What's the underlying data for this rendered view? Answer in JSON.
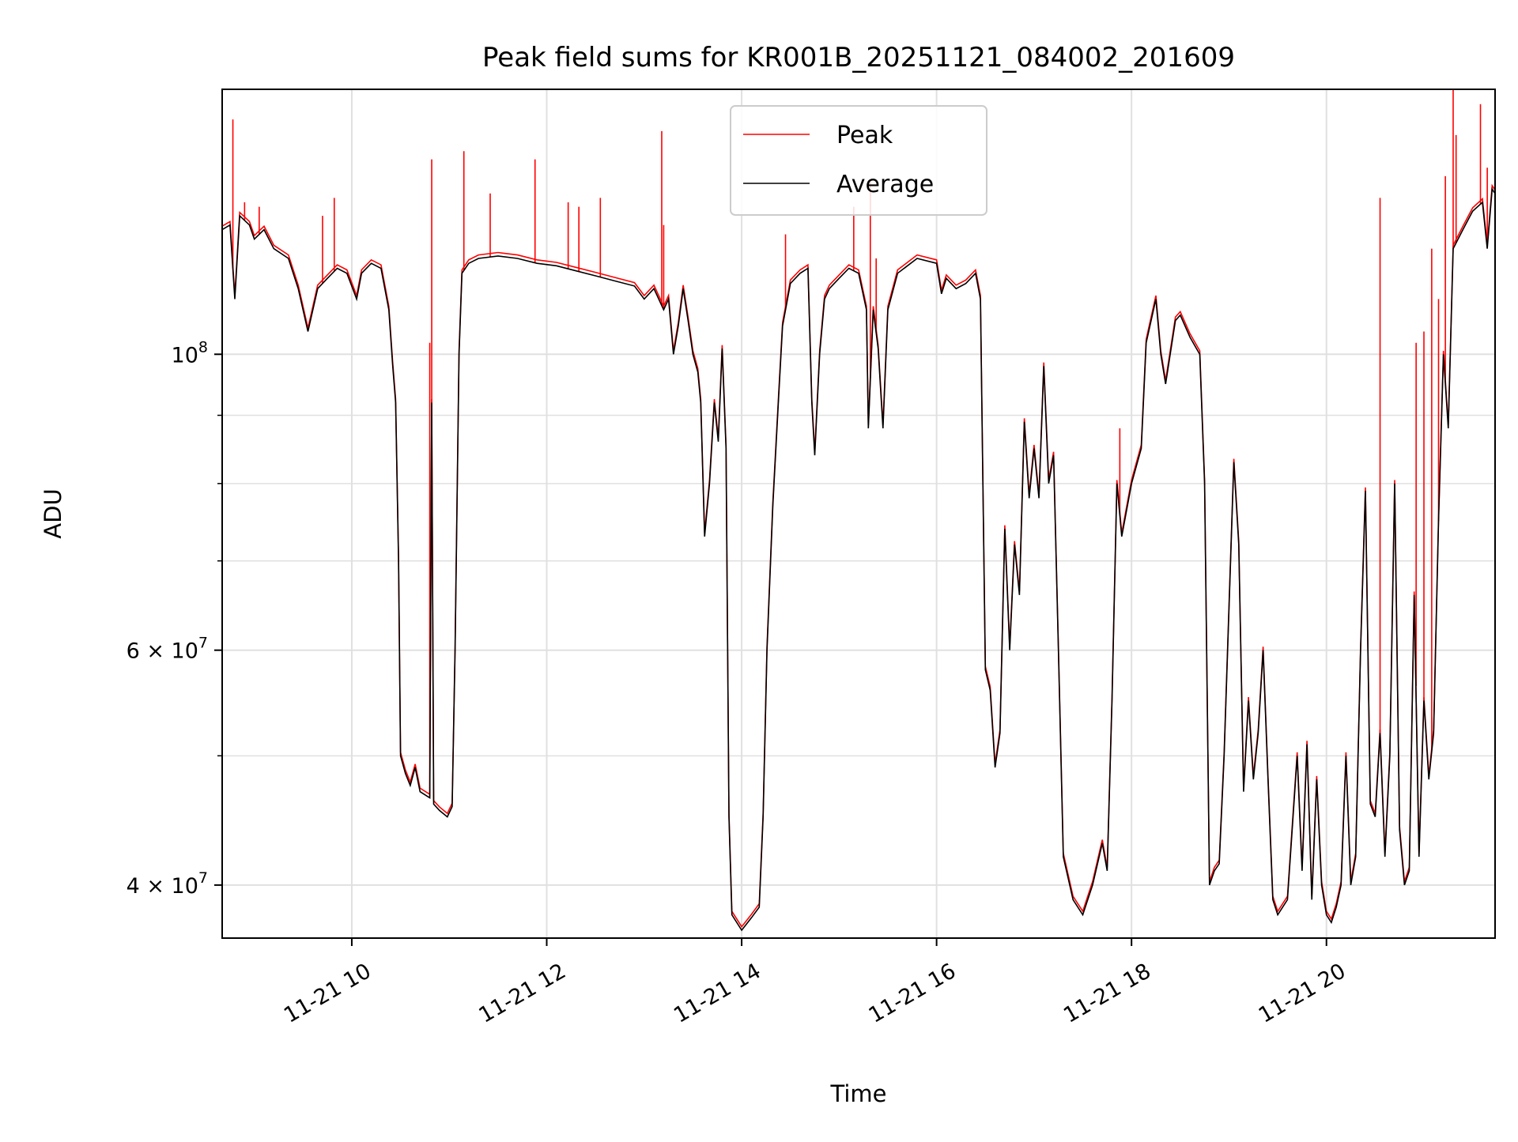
{
  "chart_data": {
    "type": "line",
    "title": "Peak field sums for KR001B_20251121_084002_201609",
    "xlabel": "Time",
    "ylabel": "ADU",
    "yscale": "log",
    "xlim_hours": [
      8.67,
      21.73
    ],
    "ylim": [
      36500000,
      158000000
    ],
    "grid": true,
    "legend_position": "upper-center",
    "colors": {
      "Peak": "#ff0000",
      "Average": "#000000",
      "grid": "#e0e0e0",
      "legend_border": "#cccccc"
    },
    "x_ticks": [
      {
        "hour": 10,
        "label": "11-21 10"
      },
      {
        "hour": 12,
        "label": "11-21 12"
      },
      {
        "hour": 14,
        "label": "11-21 14"
      },
      {
        "hour": 16,
        "label": "11-21 16"
      },
      {
        "hour": 18,
        "label": "11-21 18"
      },
      {
        "hour": 20,
        "label": "11-21 20"
      }
    ],
    "y_major_ticks": [
      {
        "value": 40000000,
        "mantissa": "4 × 10",
        "exp": "7"
      },
      {
        "value": 60000000,
        "mantissa": "6 × 10",
        "exp": "7"
      },
      {
        "value": 100000000,
        "mantissa": "10",
        "exp": "8"
      }
    ],
    "y_minor_ticks": [
      50000000,
      70000000,
      80000000,
      90000000
    ],
    "series": [
      {
        "name": "Average",
        "points": [
          [
            8.67,
            124000000
          ],
          [
            8.75,
            125000000
          ],
          [
            8.8,
            110000000
          ],
          [
            8.85,
            127000000
          ],
          [
            8.95,
            125000000
          ],
          [
            9.0,
            122000000
          ],
          [
            9.1,
            124000000
          ],
          [
            9.2,
            120000000
          ],
          [
            9.35,
            118000000
          ],
          [
            9.45,
            112000000
          ],
          [
            9.55,
            104000000
          ],
          [
            9.65,
            112000000
          ],
          [
            9.75,
            114000000
          ],
          [
            9.85,
            116000000
          ],
          [
            9.95,
            115000000
          ],
          [
            10.05,
            110000000
          ],
          [
            10.1,
            115000000
          ],
          [
            10.2,
            117000000
          ],
          [
            10.3,
            116000000
          ],
          [
            10.38,
            108000000
          ],
          [
            10.42,
            98000000
          ],
          [
            10.45,
            92000000
          ],
          [
            10.48,
            70000000
          ],
          [
            10.5,
            50000000
          ],
          [
            10.55,
            48500000
          ],
          [
            10.6,
            47500000
          ],
          [
            10.65,
            49000000
          ],
          [
            10.7,
            47000000
          ],
          [
            10.8,
            46500000
          ],
          [
            10.82,
            92000000
          ],
          [
            10.84,
            46000000
          ],
          [
            10.9,
            45500000
          ],
          [
            10.98,
            45000000
          ],
          [
            11.03,
            45800000
          ],
          [
            11.06,
            60000000
          ],
          [
            11.1,
            100000000
          ],
          [
            11.13,
            115000000
          ],
          [
            11.2,
            117000000
          ],
          [
            11.3,
            118000000
          ],
          [
            11.5,
            118500000
          ],
          [
            11.7,
            118000000
          ],
          [
            11.9,
            117000000
          ],
          [
            12.1,
            116500000
          ],
          [
            12.3,
            115500000
          ],
          [
            12.5,
            114500000
          ],
          [
            12.7,
            113500000
          ],
          [
            12.9,
            112500000
          ],
          [
            13.0,
            110000000
          ],
          [
            13.1,
            112000000
          ],
          [
            13.2,
            108000000
          ],
          [
            13.25,
            110000000
          ],
          [
            13.3,
            100000000
          ],
          [
            13.35,
            105000000
          ],
          [
            13.4,
            112000000
          ],
          [
            13.45,
            106000000
          ],
          [
            13.5,
            100000000
          ],
          [
            13.55,
            97000000
          ],
          [
            13.58,
            92000000
          ],
          [
            13.62,
            73000000
          ],
          [
            13.67,
            80000000
          ],
          [
            13.72,
            92000000
          ],
          [
            13.76,
            86000000
          ],
          [
            13.8,
            101000000
          ],
          [
            13.84,
            85000000
          ],
          [
            13.87,
            45000000
          ],
          [
            13.9,
            38000000
          ],
          [
            14.0,
            37000000
          ],
          [
            14.1,
            37800000
          ],
          [
            14.18,
            38500000
          ],
          [
            14.22,
            45000000
          ],
          [
            14.26,
            60000000
          ],
          [
            14.32,
            77000000
          ],
          [
            14.38,
            93000000
          ],
          [
            14.42,
            105000000
          ],
          [
            14.5,
            113000000
          ],
          [
            14.6,
            115000000
          ],
          [
            14.68,
            116000000
          ],
          [
            14.72,
            92000000
          ],
          [
            14.75,
            84000000
          ],
          [
            14.8,
            100000000
          ],
          [
            14.85,
            110000000
          ],
          [
            14.9,
            112000000
          ],
          [
            15.0,
            114000000
          ],
          [
            15.1,
            116000000
          ],
          [
            15.2,
            115000000
          ],
          [
            15.28,
            108000000
          ],
          [
            15.3,
            88000000
          ],
          [
            15.35,
            108000000
          ],
          [
            15.4,
            101000000
          ],
          [
            15.45,
            88000000
          ],
          [
            15.5,
            108000000
          ],
          [
            15.6,
            115000000
          ],
          [
            15.8,
            118000000
          ],
          [
            16.0,
            117000000
          ],
          [
            16.05,
            111000000
          ],
          [
            16.1,
            114000000
          ],
          [
            16.2,
            112000000
          ],
          [
            16.3,
            113000000
          ],
          [
            16.4,
            115000000
          ],
          [
            16.45,
            110000000
          ],
          [
            16.5,
            58000000
          ],
          [
            16.55,
            56000000
          ],
          [
            16.6,
            49000000
          ],
          [
            16.65,
            52000000
          ],
          [
            16.7,
            74000000
          ],
          [
            16.75,
            60000000
          ],
          [
            16.8,
            72000000
          ],
          [
            16.85,
            66000000
          ],
          [
            16.9,
            89000000
          ],
          [
            16.95,
            78000000
          ],
          [
            17.0,
            85000000
          ],
          [
            17.05,
            78000000
          ],
          [
            17.1,
            98000000
          ],
          [
            17.15,
            80000000
          ],
          [
            17.2,
            84000000
          ],
          [
            17.25,
            60000000
          ],
          [
            17.3,
            42000000
          ],
          [
            17.4,
            39000000
          ],
          [
            17.5,
            38000000
          ],
          [
            17.6,
            40000000
          ],
          [
            17.7,
            43000000
          ],
          [
            17.75,
            41000000
          ],
          [
            17.8,
            55000000
          ],
          [
            17.85,
            80000000
          ],
          [
            17.9,
            73000000
          ],
          [
            18.0,
            80000000
          ],
          [
            18.1,
            85000000
          ],
          [
            18.15,
            102000000
          ],
          [
            18.25,
            110000000
          ],
          [
            18.3,
            100000000
          ],
          [
            18.35,
            95000000
          ],
          [
            18.45,
            106000000
          ],
          [
            18.5,
            107000000
          ],
          [
            18.6,
            103000000
          ],
          [
            18.7,
            100000000
          ],
          [
            18.75,
            80000000
          ],
          [
            18.8,
            40000000
          ],
          [
            18.85,
            41000000
          ],
          [
            18.9,
            41500000
          ],
          [
            18.95,
            50000000
          ],
          [
            19.05,
            83000000
          ],
          [
            19.1,
            72000000
          ],
          [
            19.15,
            47000000
          ],
          [
            19.2,
            55000000
          ],
          [
            19.25,
            48000000
          ],
          [
            19.3,
            52000000
          ],
          [
            19.35,
            60000000
          ],
          [
            19.4,
            48000000
          ],
          [
            19.45,
            39000000
          ],
          [
            19.5,
            38000000
          ],
          [
            19.6,
            39000000
          ],
          [
            19.7,
            50000000
          ],
          [
            19.75,
            41000000
          ],
          [
            19.8,
            51000000
          ],
          [
            19.85,
            39000000
          ],
          [
            19.9,
            48000000
          ],
          [
            19.95,
            40000000
          ],
          [
            20.0,
            38000000
          ],
          [
            20.05,
            37500000
          ],
          [
            20.1,
            38500000
          ],
          [
            20.15,
            40000000
          ],
          [
            20.2,
            50000000
          ],
          [
            20.25,
            40000000
          ],
          [
            20.3,
            42000000
          ],
          [
            20.35,
            60000000
          ],
          [
            20.4,
            79000000
          ],
          [
            20.45,
            46000000
          ],
          [
            20.5,
            45000000
          ],
          [
            20.55,
            52000000
          ],
          [
            20.6,
            42000000
          ],
          [
            20.65,
            50000000
          ],
          [
            20.7,
            80000000
          ],
          [
            20.75,
            44000000
          ],
          [
            20.8,
            40000000
          ],
          [
            20.85,
            41000000
          ],
          [
            20.9,
            66000000
          ],
          [
            20.95,
            42000000
          ],
          [
            21.0,
            55000000
          ],
          [
            21.05,
            48000000
          ],
          [
            21.1,
            52000000
          ],
          [
            21.15,
            75000000
          ],
          [
            21.2,
            100000000
          ],
          [
            21.25,
            88000000
          ],
          [
            21.3,
            120000000
          ],
          [
            21.4,
            124000000
          ],
          [
            21.5,
            128000000
          ],
          [
            21.6,
            130000000
          ],
          [
            21.65,
            120000000
          ],
          [
            21.7,
            133000000
          ],
          [
            21.73,
            132000000
          ]
        ]
      },
      {
        "name": "Peak",
        "spikes": [
          [
            8.78,
            150000000
          ],
          [
            8.9,
            130000000
          ],
          [
            9.05,
            129000000
          ],
          [
            9.7,
            127000000
          ],
          [
            9.82,
            131000000
          ],
          [
            10.82,
            140000000
          ],
          [
            10.8,
            102000000
          ],
          [
            11.15,
            142000000
          ],
          [
            11.42,
            132000000
          ],
          [
            11.88,
            140000000
          ],
          [
            12.22,
            130000000
          ],
          [
            12.33,
            129000000
          ],
          [
            12.55,
            131000000
          ],
          [
            13.18,
            147000000
          ],
          [
            13.2,
            125000000
          ],
          [
            14.45,
            123000000
          ],
          [
            15.15,
            129000000
          ],
          [
            15.32,
            135000000
          ],
          [
            15.38,
            118000000
          ],
          [
            17.88,
            88000000
          ],
          [
            20.55,
            131000000
          ],
          [
            20.92,
            102000000
          ],
          [
            21.0,
            104000000
          ],
          [
            21.08,
            120000000
          ],
          [
            21.15,
            110000000
          ],
          [
            21.22,
            136000000
          ],
          [
            21.3,
            158000000
          ],
          [
            21.33,
            146000000
          ],
          [
            21.58,
            154000000
          ],
          [
            21.65,
            138000000
          ]
        ]
      }
    ]
  }
}
